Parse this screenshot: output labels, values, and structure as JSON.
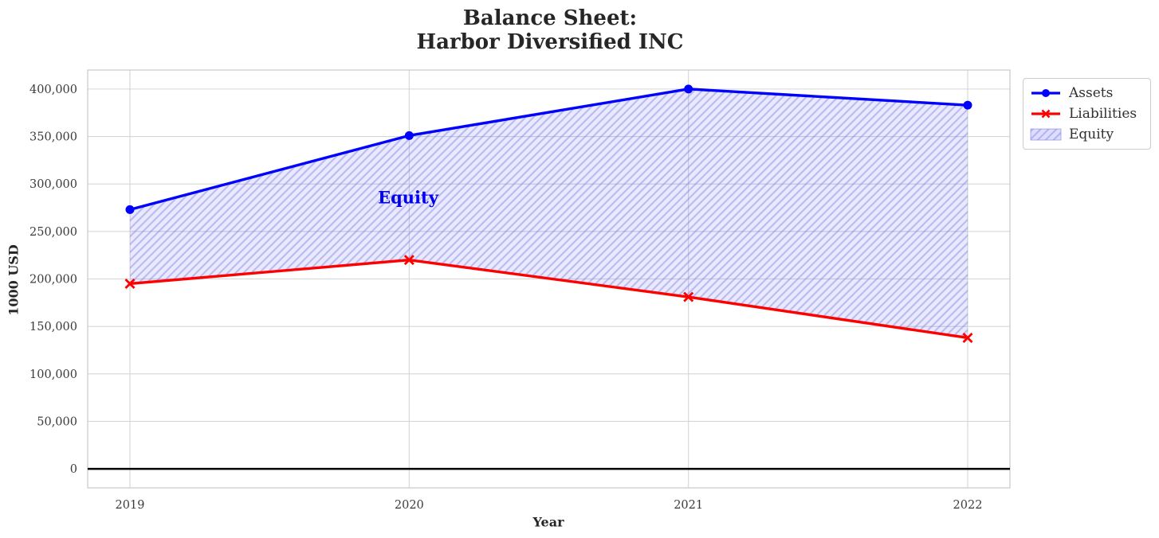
{
  "chart_data": {
    "type": "line",
    "title": "Balance Sheet: Harbor Diversified INC",
    "title_line1": "Balance Sheet:",
    "title_line2": "Harbor Diversified INC",
    "xlabel": "Year",
    "ylabel": "1000 USD",
    "categories": [
      "2019",
      "2020",
      "2021",
      "2022"
    ],
    "series": [
      {
        "name": "Assets",
        "color": "#0000ff",
        "marker": "circle",
        "values": [
          273000,
          351000,
          400000,
          383000
        ]
      },
      {
        "name": "Liabilities",
        "color": "#ff0000",
        "marker": "x",
        "values": [
          195000,
          220000,
          181000,
          138000
        ]
      }
    ],
    "fill_between": {
      "label": "Equity",
      "between": [
        "Assets",
        "Liabilities"
      ],
      "fill_color": "#0000ff",
      "fill_opacity": 0.085,
      "hatch": "//",
      "hatch_color": "#8080e0",
      "hatch_opacity": 0.45
    },
    "annotation": {
      "text": "Equity",
      "x": "2020",
      "y": 286000,
      "color": "#0000ee"
    },
    "y_ticks": [
      0,
      50000,
      100000,
      150000,
      200000,
      250000,
      300000,
      350000,
      400000
    ],
    "y_tick_labels": [
      "0",
      "50,000",
      "100,000",
      "150,000",
      "200,000",
      "250,000",
      "300,000",
      "350,000",
      "400,000"
    ],
    "ylim": [
      -20000,
      420000
    ],
    "zero_line": {
      "value": 0,
      "color": "#000000"
    },
    "grid": true,
    "grid_color": "#d6d6d6",
    "axes_border_color": "#cccccc",
    "tick_label_color": "#3b3b3b",
    "legend_position": "upper right, outside plot"
  }
}
